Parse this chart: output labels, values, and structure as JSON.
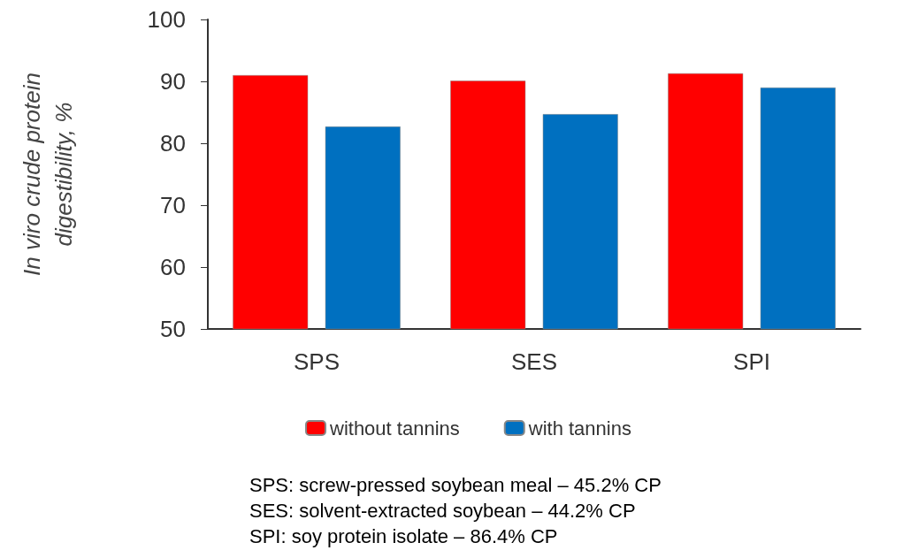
{
  "chart_data": {
    "type": "bar",
    "ylabel": "In viro crude protein\ndigestibility, %",
    "categories": [
      "SPS",
      "SES",
      "SPI"
    ],
    "series": [
      {
        "name": "without tannins",
        "color": "#ff0000",
        "values": [
          91.0,
          90.1,
          91.3
        ]
      },
      {
        "name": "with tannins",
        "color": "#0070c0",
        "values": [
          82.7,
          84.7,
          89.0
        ]
      }
    ],
    "ylim": [
      50,
      100
    ],
    "yticks": [
      50,
      60,
      70,
      80,
      90,
      100
    ],
    "grid": false,
    "legend": "bottom",
    "annotations": [
      "SPS: screw-pressed soybean meal – 45.2% CP",
      "SES: solvent-extracted soybean – 44.2% CP",
      "SPI: soy protein isolate – 86.4% CP"
    ]
  }
}
